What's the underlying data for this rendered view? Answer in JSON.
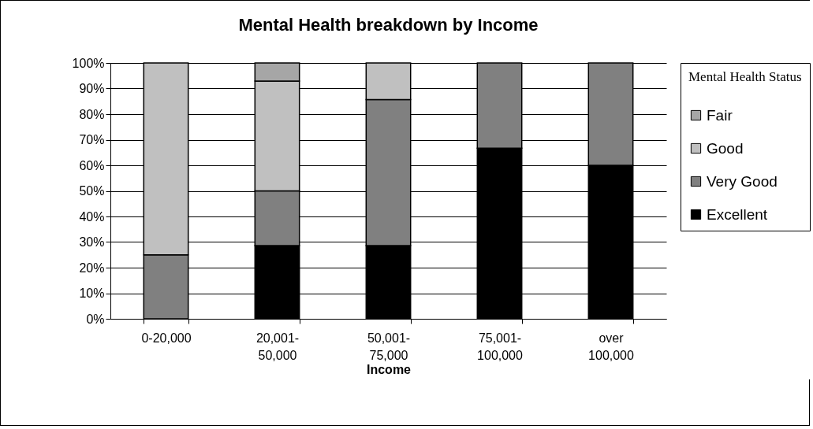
{
  "chart_data": {
    "type": "bar",
    "title": "Mental Health breakdown by Income",
    "xlabel": "Income",
    "legend_title": "Mental Health Status",
    "stacked": true,
    "categories": [
      "0-20,000",
      "20,001-50,000",
      "50,001-75,000",
      "75,001-100,000",
      "over 100,000"
    ],
    "series": [
      {
        "name": "Excellent",
        "color": "#000000",
        "values": [
          null,
          28.6,
          28.6,
          66.7,
          60
        ]
      },
      {
        "name": "Very Good",
        "color": "#808080",
        "values": [
          25,
          21.4,
          57.1,
          33.3,
          40
        ]
      },
      {
        "name": "Good",
        "color": "#c0c0c0",
        "values": [
          75,
          42.9,
          14.3,
          null,
          null
        ]
      },
      {
        "name": "Fair",
        "color": "#a6a6a6",
        "values": [
          null,
          7.1,
          null,
          null,
          null
        ]
      }
    ],
    "ylim": [
      0,
      100
    ],
    "yticks": [
      {
        "value": 0,
        "label": "0%"
      },
      {
        "value": 10,
        "label": "10%"
      },
      {
        "value": 20,
        "label": "20%"
      },
      {
        "value": 30,
        "label": "30%"
      },
      {
        "value": 40,
        "label": "40%"
      },
      {
        "value": 50,
        "label": "50%"
      },
      {
        "value": 60,
        "label": "60%"
      },
      {
        "value": 70,
        "label": "70%"
      },
      {
        "value": 80,
        "label": "80%"
      },
      {
        "value": 90,
        "label": "90%"
      },
      {
        "value": 100,
        "label": "100%"
      }
    ],
    "grid": "y",
    "legend": "right"
  }
}
